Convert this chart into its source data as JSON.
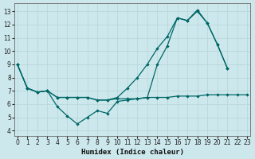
{
  "xlabel": "Humidex (Indice chaleur)",
  "bg_color": "#cce8ec",
  "grid_color": "#b8d8dc",
  "line_color": "#006666",
  "x_ticks": [
    0,
    1,
    2,
    3,
    4,
    5,
    6,
    7,
    8,
    9,
    10,
    11,
    12,
    13,
    14,
    15,
    16,
    17,
    18,
    19,
    20,
    21,
    22,
    23
  ],
  "y_ticks": [
    4,
    5,
    6,
    7,
    8,
    9,
    10,
    11,
    12,
    13
  ],
  "xlim": [
    -0.3,
    23.3
  ],
  "ylim": [
    3.6,
    13.6
  ],
  "line_flat_x": [
    0,
    1,
    2,
    3,
    4,
    5,
    6,
    7,
    8,
    9,
    10,
    11,
    12,
    13,
    14,
    15,
    16,
    17,
    18,
    19,
    20,
    21,
    22,
    23
  ],
  "line_flat_y": [
    9.0,
    7.2,
    6.9,
    7.0,
    6.5,
    6.5,
    6.5,
    6.5,
    6.3,
    6.3,
    6.4,
    6.4,
    6.4,
    6.5,
    6.5,
    6.5,
    6.6,
    6.6,
    6.6,
    6.7,
    6.7,
    6.7,
    6.7,
    6.7
  ],
  "line_jagged_x": [
    0,
    1,
    2,
    3,
    4,
    5,
    6,
    7,
    8,
    9,
    10,
    11,
    12,
    13,
    14,
    15,
    16,
    17,
    18,
    19,
    20,
    21
  ],
  "line_jagged_y": [
    9.0,
    7.2,
    6.9,
    7.0,
    5.8,
    5.1,
    4.5,
    5.0,
    5.5,
    5.3,
    6.2,
    6.3,
    6.4,
    6.5,
    9.0,
    10.4,
    12.5,
    12.3,
    13.0,
    12.1,
    10.5,
    8.7
  ],
  "line_rise_x": [
    0,
    1,
    2,
    3,
    4,
    5,
    6,
    7,
    8,
    9,
    10,
    11,
    12,
    13,
    14,
    15,
    16,
    17,
    18,
    19,
    20,
    21
  ],
  "line_rise_y": [
    9.0,
    7.2,
    6.9,
    7.0,
    6.5,
    6.5,
    6.5,
    6.5,
    6.3,
    6.3,
    6.5,
    7.2,
    8.0,
    9.0,
    10.2,
    11.1,
    12.5,
    12.3,
    13.1,
    12.1,
    10.5,
    8.7
  ]
}
